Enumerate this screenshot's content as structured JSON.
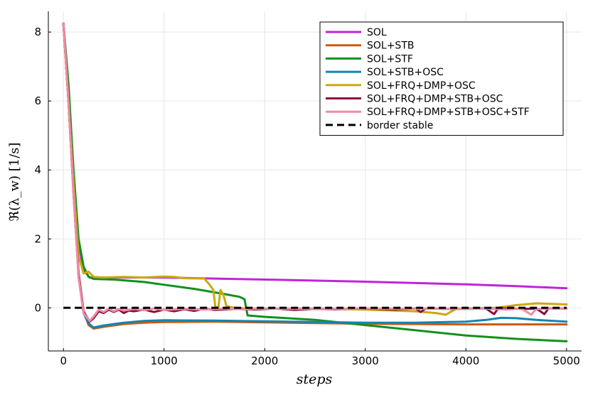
{
  "chart_data": {
    "type": "line",
    "title": "",
    "xlabel": "steps",
    "ylabel": "ℜ(λ_w) [1/s]",
    "xlim": [
      -150,
      5150
    ],
    "ylim": [
      -1.25,
      8.6
    ],
    "xticks": [
      0,
      1000,
      2000,
      3000,
      4000,
      5000
    ],
    "yticks": [
      0,
      2,
      4,
      6,
      8
    ],
    "grid": true,
    "legend_position": "top-right",
    "series": [
      {
        "name": "SOL",
        "color": "#c025d9",
        "style": "solid",
        "points": [
          [
            0,
            8.25
          ],
          [
            50,
            6.2
          ],
          [
            100,
            3.6
          ],
          [
            150,
            1.9
          ],
          [
            200,
            1.1
          ],
          [
            260,
            0.88
          ],
          [
            400,
            0.88
          ],
          [
            800,
            0.88
          ],
          [
            1000,
            0.88
          ],
          [
            1500,
            0.85
          ],
          [
            2000,
            0.82
          ],
          [
            3000,
            0.76
          ],
          [
            4000,
            0.68
          ],
          [
            4500,
            0.63
          ],
          [
            5000,
            0.57
          ]
        ]
      },
      {
        "name": "SOL+STB",
        "color": "#c95a14",
        "style": "solid",
        "points": [
          [
            0,
            8.25
          ],
          [
            50,
            6.0
          ],
          [
            100,
            3.4
          ],
          [
            150,
            1.0
          ],
          [
            200,
            -0.1
          ],
          [
            250,
            -0.5
          ],
          [
            300,
            -0.6
          ],
          [
            400,
            -0.55
          ],
          [
            600,
            -0.47
          ],
          [
            800,
            -0.43
          ],
          [
            1000,
            -0.41
          ],
          [
            1500,
            -0.4
          ],
          [
            2000,
            -0.42
          ],
          [
            2500,
            -0.44
          ],
          [
            3000,
            -0.46
          ],
          [
            3500,
            -0.47
          ],
          [
            4000,
            -0.48
          ],
          [
            5000,
            -0.48
          ]
        ]
      },
      {
        "name": "SOL+STF",
        "color": "#12901e",
        "style": "solid",
        "points": [
          [
            0,
            8.25
          ],
          [
            50,
            6.5
          ],
          [
            100,
            4.0
          ],
          [
            150,
            2.0
          ],
          [
            200,
            1.2
          ],
          [
            250,
            0.9
          ],
          [
            300,
            0.84
          ],
          [
            500,
            0.82
          ],
          [
            800,
            0.75
          ],
          [
            1000,
            0.67
          ],
          [
            1300,
            0.55
          ],
          [
            1600,
            0.4
          ],
          [
            1750,
            0.32
          ],
          [
            1800,
            0.25
          ],
          [
            1830,
            -0.22
          ],
          [
            2000,
            -0.26
          ],
          [
            2500,
            -0.35
          ],
          [
            3000,
            -0.5
          ],
          [
            3500,
            -0.65
          ],
          [
            4000,
            -0.8
          ],
          [
            4500,
            -0.9
          ],
          [
            5000,
            -0.97
          ]
        ]
      },
      {
        "name": "SOL+STB+OSC",
        "color": "#1584b0",
        "style": "solid",
        "points": [
          [
            0,
            8.25
          ],
          [
            50,
            6.0
          ],
          [
            100,
            3.4
          ],
          [
            150,
            0.9
          ],
          [
            200,
            -0.15
          ],
          [
            250,
            -0.45
          ],
          [
            300,
            -0.57
          ],
          [
            400,
            -0.51
          ],
          [
            600,
            -0.43
          ],
          [
            800,
            -0.38
          ],
          [
            1000,
            -0.36
          ],
          [
            1500,
            -0.37
          ],
          [
            2000,
            -0.39
          ],
          [
            2500,
            -0.41
          ],
          [
            3000,
            -0.43
          ],
          [
            3500,
            -0.43
          ],
          [
            4000,
            -0.4
          ],
          [
            4200,
            -0.35
          ],
          [
            4350,
            -0.29
          ],
          [
            4500,
            -0.3
          ],
          [
            4700,
            -0.35
          ],
          [
            5000,
            -0.4
          ]
        ]
      },
      {
        "name": "SOL+FRQ+DMP+OSC",
        "color": "#c9aa0f",
        "style": "solid",
        "points": [
          [
            0,
            8.25
          ],
          [
            50,
            6.0
          ],
          [
            100,
            3.6
          ],
          [
            150,
            1.5
          ],
          [
            200,
            1.0
          ],
          [
            250,
            1.05
          ],
          [
            300,
            0.9
          ],
          [
            400,
            0.88
          ],
          [
            600,
            0.9
          ],
          [
            800,
            0.88
          ],
          [
            1000,
            0.91
          ],
          [
            1100,
            0.9
          ],
          [
            1200,
            0.86
          ],
          [
            1400,
            0.85
          ],
          [
            1450,
            0.68
          ],
          [
            1490,
            0.52
          ],
          [
            1510,
            0.02
          ],
          [
            1540,
            0.02
          ],
          [
            1560,
            0.52
          ],
          [
            1590,
            0.38
          ],
          [
            1620,
            0.05
          ],
          [
            1700,
            0.0
          ],
          [
            1800,
            -0.02
          ],
          [
            2000,
            -0.02
          ],
          [
            2500,
            -0.02
          ],
          [
            3000,
            -0.05
          ],
          [
            3500,
            -0.1
          ],
          [
            3700,
            -0.15
          ],
          [
            3800,
            -0.2
          ],
          [
            3900,
            -0.03
          ],
          [
            4000,
            -0.02
          ],
          [
            4300,
            0.0
          ],
          [
            4500,
            0.08
          ],
          [
            4700,
            0.13
          ],
          [
            5000,
            0.1
          ]
        ]
      },
      {
        "name": "SOL+FRQ+DMP+STB+OSC",
        "color": "#8a0d3d",
        "style": "solid",
        "points": [
          [
            0,
            8.25
          ],
          [
            50,
            6.0
          ],
          [
            100,
            3.3
          ],
          [
            150,
            1.0
          ],
          [
            200,
            -0.1
          ],
          [
            260,
            -0.4
          ],
          [
            300,
            -0.3
          ],
          [
            350,
            -0.1
          ],
          [
            400,
            -0.15
          ],
          [
            450,
            -0.05
          ],
          [
            500,
            -0.12
          ],
          [
            550,
            -0.05
          ],
          [
            600,
            -0.15
          ],
          [
            650,
            -0.08
          ],
          [
            700,
            -0.1
          ],
          [
            800,
            -0.05
          ],
          [
            900,
            -0.12
          ],
          [
            1000,
            -0.05
          ],
          [
            1100,
            -0.1
          ],
          [
            1200,
            -0.04
          ],
          [
            1300,
            -0.09
          ],
          [
            1400,
            -0.02
          ],
          [
            1500,
            -0.06
          ],
          [
            1700,
            -0.03
          ],
          [
            1900,
            -0.05
          ],
          [
            2100,
            -0.02
          ],
          [
            2300,
            -0.06
          ],
          [
            2500,
            -0.03
          ],
          [
            2700,
            -0.04
          ],
          [
            2900,
            -0.02
          ],
          [
            3100,
            -0.03
          ],
          [
            3300,
            -0.05
          ],
          [
            3500,
            -0.02
          ],
          [
            3550,
            -0.12
          ],
          [
            3600,
            -0.02
          ],
          [
            3800,
            -0.03
          ],
          [
            4000,
            -0.03
          ],
          [
            4200,
            -0.02
          ],
          [
            4280,
            -0.18
          ],
          [
            4320,
            -0.02
          ],
          [
            4600,
            -0.03
          ],
          [
            4700,
            -0.02
          ],
          [
            4780,
            -0.18
          ],
          [
            4820,
            -0.02
          ],
          [
            5000,
            -0.02
          ]
        ]
      },
      {
        "name": "SOL+FRQ+DMP+STB+OSC+STF",
        "color": "#f38aa6",
        "style": "solid",
        "points": [
          [
            0,
            8.25
          ],
          [
            50,
            6.0
          ],
          [
            100,
            3.3
          ],
          [
            150,
            0.9
          ],
          [
            200,
            -0.15
          ],
          [
            260,
            -0.38
          ],
          [
            300,
            -0.25
          ],
          [
            350,
            -0.05
          ],
          [
            400,
            -0.12
          ],
          [
            450,
            -0.02
          ],
          [
            500,
            -0.1
          ],
          [
            550,
            -0.03
          ],
          [
            600,
            -0.08
          ],
          [
            700,
            -0.03
          ],
          [
            800,
            -0.07
          ],
          [
            900,
            -0.02
          ],
          [
            1000,
            -0.06
          ],
          [
            1200,
            -0.03
          ],
          [
            1400,
            -0.05
          ],
          [
            1600,
            -0.02
          ],
          [
            1800,
            -0.04
          ],
          [
            2000,
            -0.02
          ],
          [
            2500,
            -0.03
          ],
          [
            3000,
            -0.02
          ],
          [
            3500,
            -0.03
          ],
          [
            3700,
            -0.02
          ],
          [
            4000,
            -0.03
          ],
          [
            4200,
            -0.02
          ],
          [
            4400,
            -0.05
          ],
          [
            4550,
            -0.02
          ],
          [
            4650,
            -0.2
          ],
          [
            4700,
            -0.03
          ],
          [
            5000,
            -0.02
          ]
        ]
      },
      {
        "name": "border stable",
        "color": "#000000",
        "style": "dashed",
        "points": [
          [
            0,
            0
          ],
          [
            5000,
            0
          ]
        ]
      }
    ]
  }
}
